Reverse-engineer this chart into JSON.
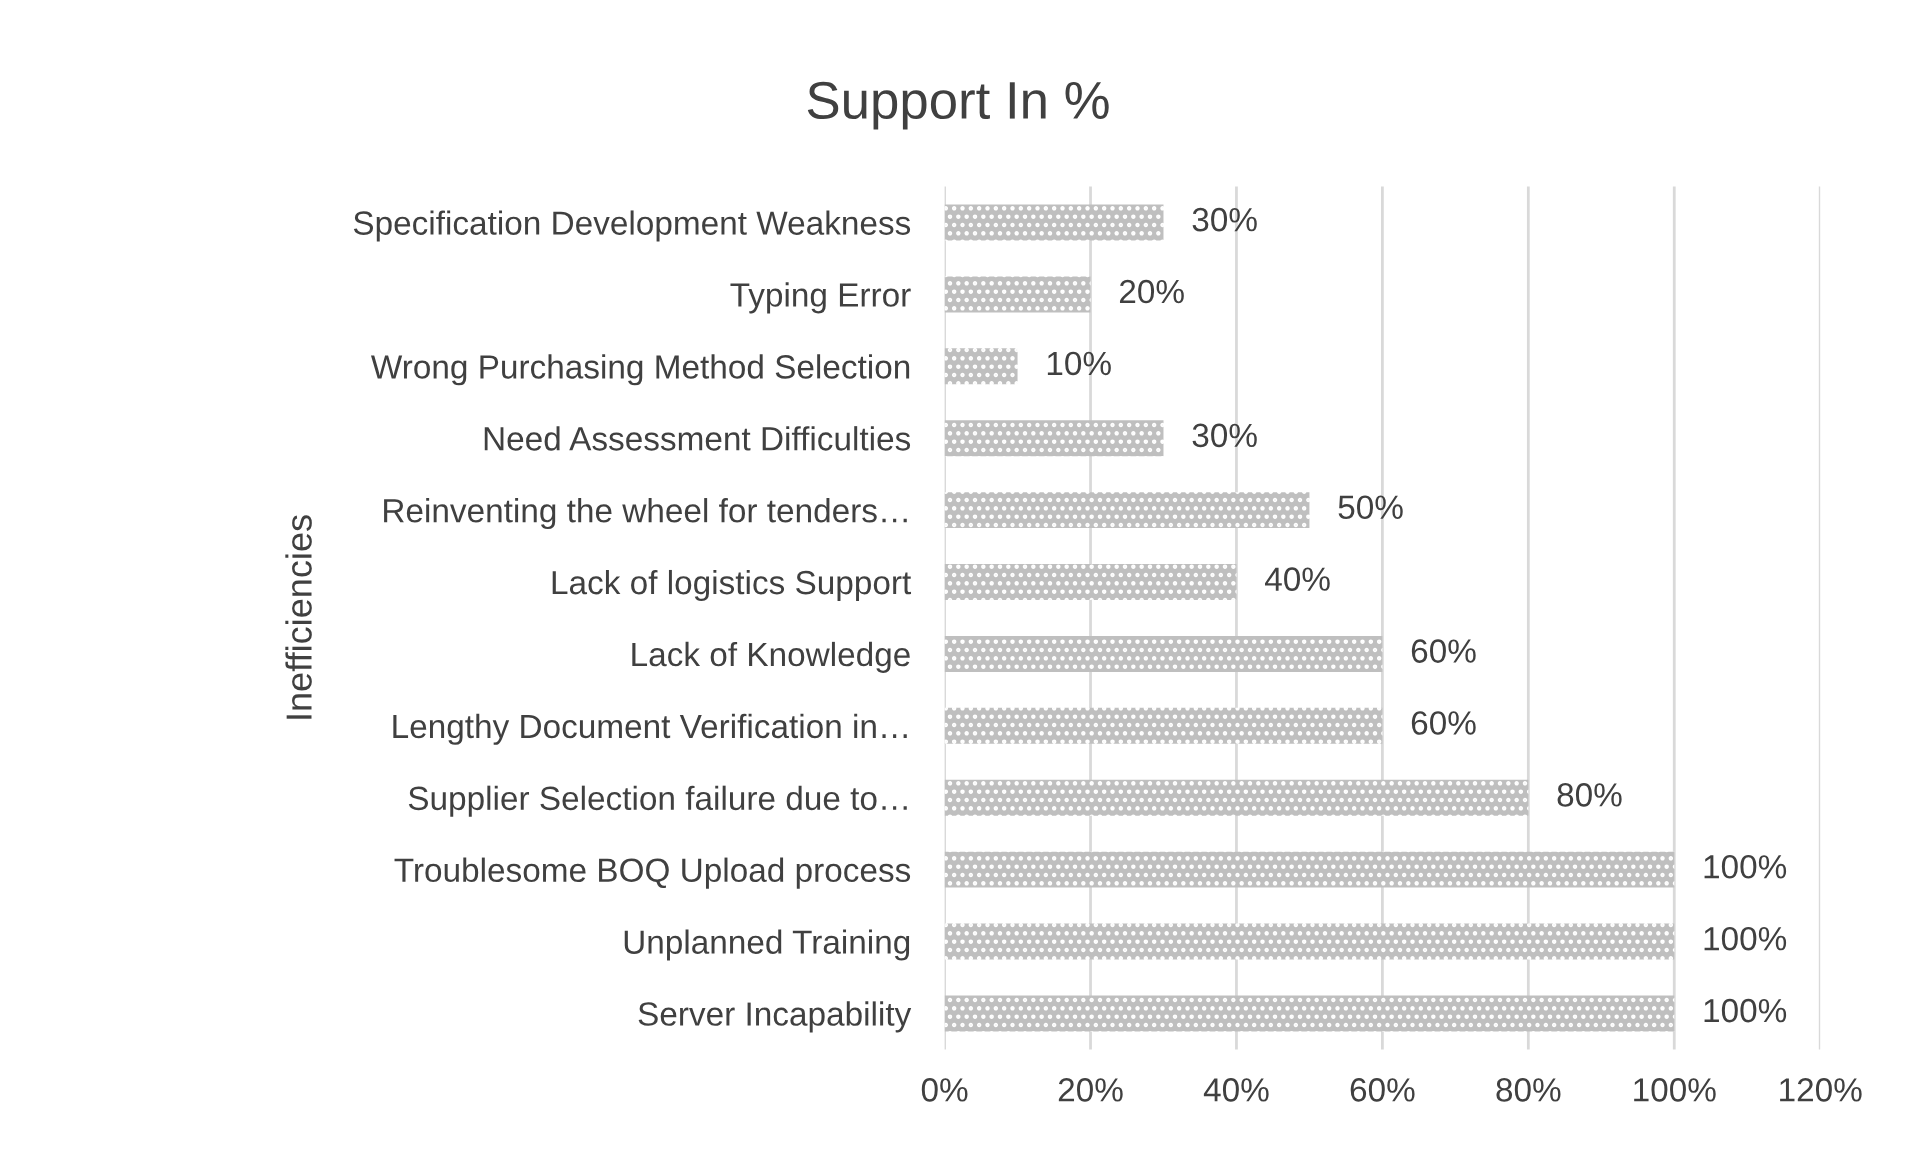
{
  "chart_data": {
    "type": "bar",
    "orientation": "horizontal",
    "title": "Support In %",
    "ylabel": "Inefficiencies",
    "categories": [
      "Specification Development Weakness",
      "Typing Error",
      "Wrong Purchasing Method Selection",
      "Need Assessment Difficulties",
      "Reinventing the wheel for tenders…",
      "Lack of logistics Support",
      "Lack of Knowledge",
      "Lengthy Document Verification in…",
      "Supplier Selection failure due to…",
      "Troublesome BOQ Upload process",
      "Unplanned Training",
      "Server Incapability"
    ],
    "values": [
      30,
      20,
      10,
      30,
      50,
      40,
      60,
      60,
      80,
      100,
      100,
      100
    ],
    "value_labels": [
      "30%",
      "20%",
      "10%",
      "30%",
      "50%",
      "40%",
      "60%",
      "60%",
      "80%",
      "100%",
      "100%",
      "100%"
    ],
    "color": "#bfbfbf",
    "xlim": [
      0,
      120
    ],
    "xticks": [
      {
        "value": 0,
        "label": "0%"
      },
      {
        "value": 20,
        "label": "20%"
      },
      {
        "value": 40,
        "label": "40%"
      },
      {
        "value": 60,
        "label": "60%"
      },
      {
        "value": 80,
        "label": "80%"
      },
      {
        "value": 100,
        "label": "100%"
      },
      {
        "value": 120,
        "label": "120%"
      }
    ],
    "grid": "x"
  }
}
